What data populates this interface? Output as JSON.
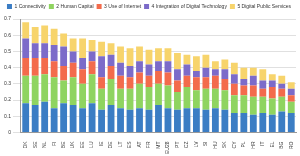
{
  "chart_data": {
    "type": "bar",
    "stacked": true,
    "grid": true,
    "legend": "top",
    "categories": [
      "DK",
      "SE",
      "NL",
      "FI",
      "BE",
      "UK",
      "EE",
      "LU",
      "IE",
      "DE",
      "LT",
      "ES",
      "AT",
      "FR",
      "MT",
      "EU28",
      "PT",
      "CZ",
      "LV",
      "SI",
      "HU",
      "SK",
      "CY",
      "PL",
      "HR",
      "IT",
      "EL",
      "BG",
      "RO"
    ],
    "series": [
      {
        "name": "1 Connectivity",
        "color": "#3b7dc4",
        "values": [
          0.18,
          0.17,
          0.19,
          0.15,
          0.18,
          0.17,
          0.15,
          0.18,
          0.14,
          0.17,
          0.15,
          0.14,
          0.15,
          0.14,
          0.17,
          0.15,
          0.14,
          0.15,
          0.15,
          0.14,
          0.15,
          0.14,
          0.12,
          0.12,
          0.11,
          0.12,
          0.11,
          0.13,
          0.12
        ]
      },
      {
        "name": "2 Human Capital",
        "color": "#8fd460",
        "values": [
          0.17,
          0.18,
          0.17,
          0.19,
          0.14,
          0.17,
          0.15,
          0.18,
          0.13,
          0.16,
          0.12,
          0.13,
          0.15,
          0.14,
          0.13,
          0.14,
          0.11,
          0.13,
          0.11,
          0.13,
          0.12,
          0.12,
          0.11,
          0.11,
          0.11,
          0.1,
          0.1,
          0.09,
          0.07
        ]
      },
      {
        "name": "3 Use of Internet",
        "color": "#f36b4c",
        "values": [
          0.11,
          0.11,
          0.1,
          0.1,
          0.09,
          0.09,
          0.09,
          0.08,
          0.07,
          0.08,
          0.08,
          0.07,
          0.07,
          0.07,
          0.08,
          0.08,
          0.07,
          0.07,
          0.08,
          0.07,
          0.08,
          0.07,
          0.07,
          0.06,
          0.07,
          0.05,
          0.07,
          0.05,
          0.04
        ]
      },
      {
        "name": "4 Integration of Digital Technology",
        "color": "#7c6bc9",
        "values": [
          0.12,
          0.09,
          0.09,
          0.1,
          0.12,
          0.07,
          0.07,
          0.06,
          0.13,
          0.07,
          0.08,
          0.07,
          0.07,
          0.07,
          0.06,
          0.07,
          0.07,
          0.07,
          0.04,
          0.06,
          0.04,
          0.06,
          0.06,
          0.04,
          0.06,
          0.05,
          0.04,
          0.03,
          0.04
        ]
      },
      {
        "name": "5 Digital Public Services",
        "color": "#f7d46c",
        "values": [
          0.1,
          0.1,
          0.11,
          0.1,
          0.08,
          0.08,
          0.12,
          0.07,
          0.09,
          0.07,
          0.1,
          0.11,
          0.09,
          0.09,
          0.08,
          0.08,
          0.1,
          0.06,
          0.09,
          0.08,
          0.05,
          0.06,
          0.07,
          0.07,
          0.05,
          0.07,
          0.04,
          0.05,
          0.04
        ]
      }
    ],
    "ylim": [
      0,
      0.7
    ],
    "yticks": [
      0,
      0.1,
      0.2,
      0.3,
      0.4,
      0.5,
      0.6,
      0.7
    ]
  }
}
